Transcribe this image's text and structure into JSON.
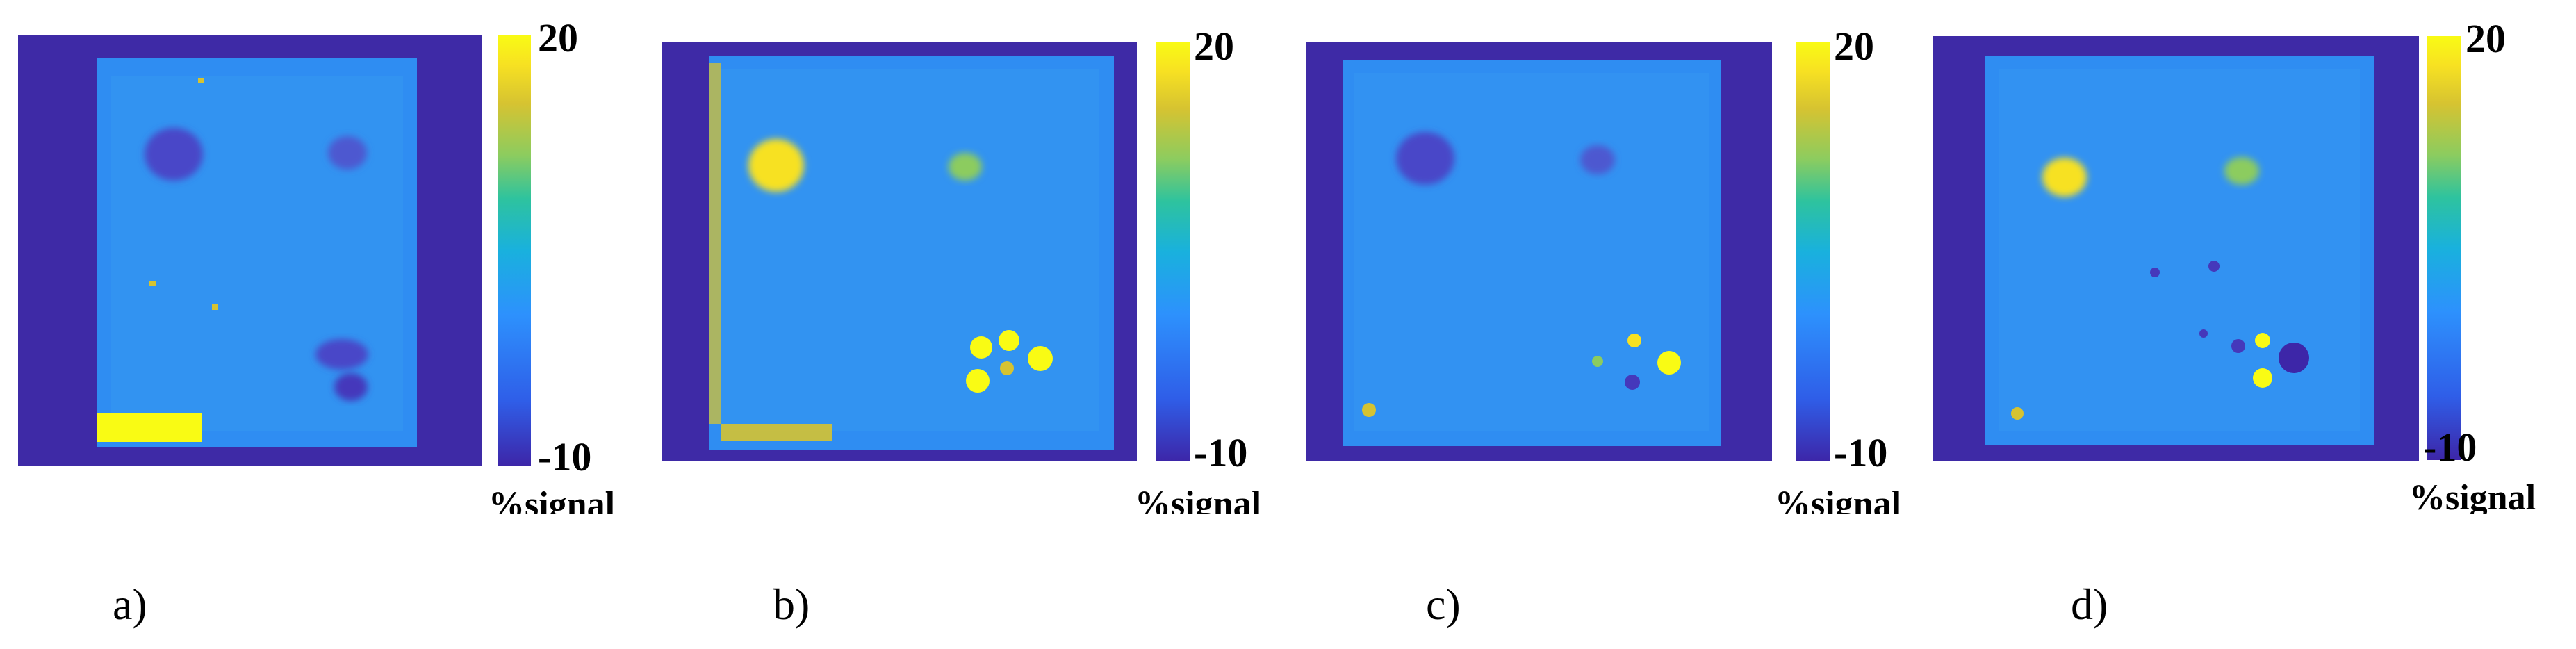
{
  "colormap": {
    "unit_label": "%signal",
    "max_label": "20",
    "min_label": "-10",
    "stops": [
      "#3d26a8",
      "#2f5ee8",
      "#2d91fd",
      "#19b1dd",
      "#2ec39e",
      "#8ccc5f",
      "#d6c331",
      "#f7e122",
      "#f9fb14"
    ]
  },
  "panels": [
    {
      "label": "a)"
    },
    {
      "label": "b)"
    },
    {
      "label": "c)"
    },
    {
      "label": "d)"
    }
  ]
}
